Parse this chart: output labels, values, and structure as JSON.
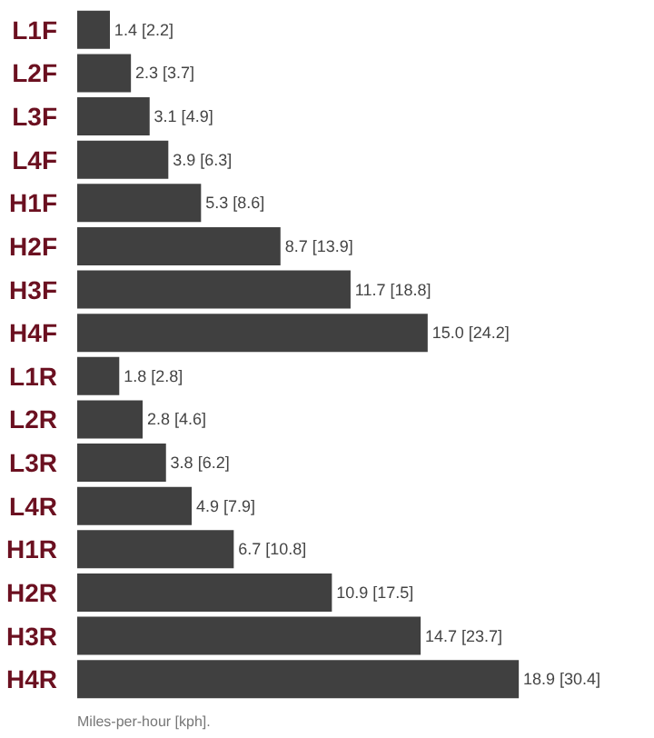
{
  "chart_data": {
    "type": "bar",
    "orientation": "horizontal",
    "categories": [
      "L1F",
      "L2F",
      "L3F",
      "L4F",
      "H1F",
      "H2F",
      "H3F",
      "H4F",
      "L1R",
      "L2R",
      "L3R",
      "L4R",
      "H1R",
      "H2R",
      "H3R",
      "H4R"
    ],
    "values": [
      1.4,
      2.3,
      3.1,
      3.9,
      5.3,
      8.7,
      11.7,
      15.0,
      1.8,
      2.8,
      3.8,
      4.9,
      6.7,
      10.9,
      14.7,
      18.9
    ],
    "value_labels": [
      "1.4 [2.2]",
      "2.3 [3.7]",
      "3.1 [4.9]",
      "3.9 [6.3]",
      "5.3 [8.6]",
      "8.7 [13.9]",
      "11.7 [18.8]",
      "15.0 [24.2]",
      "1.8 [2.8]",
      "2.8 [4.6]",
      "3.8 [6.2]",
      "4.9 [7.9]",
      "6.7 [10.8]",
      "10.9 [17.5]",
      "14.7 [23.7]",
      "18.9 [30.4]"
    ],
    "color": "#404040",
    "grid": false,
    "annotations": [
      "Miles-per-hour [kph]."
    ]
  }
}
